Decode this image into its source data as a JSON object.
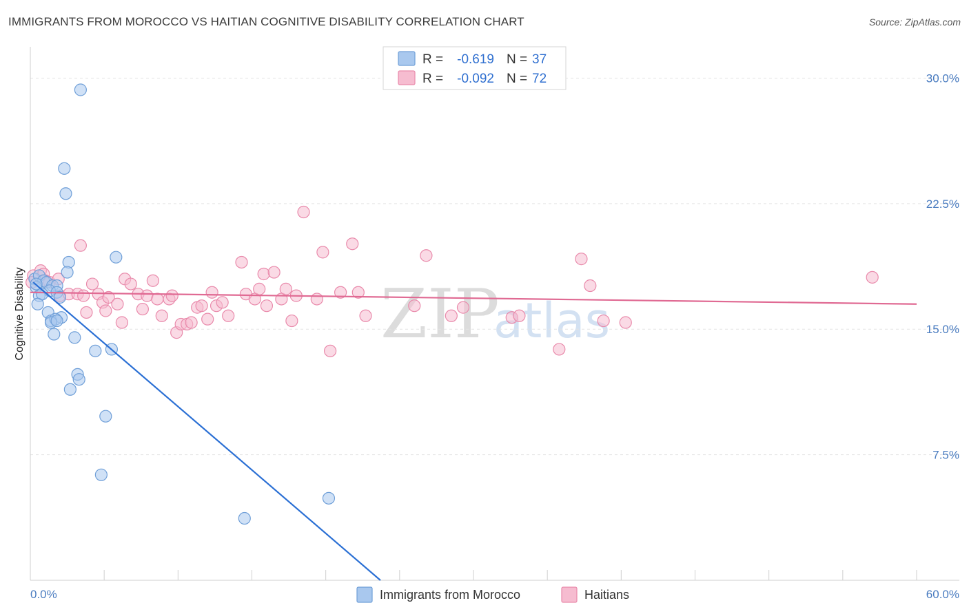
{
  "title": "IMMIGRANTS FROM MOROCCO VS HAITIAN COGNITIVE DISABILITY CORRELATION CHART",
  "source": "Source: ZipAtlas.com",
  "watermark": {
    "zip": "ZIP",
    "atlas": "atlas"
  },
  "legend": {
    "rows": [
      {
        "r_label": "R =",
        "r_value": "-0.619",
        "n_label": "N =",
        "n_value": "37"
      },
      {
        "r_label": "R =",
        "r_value": "-0.092",
        "n_label": "N =",
        "n_value": "72"
      }
    ]
  },
  "bottom_legend": [
    "Immigrants from Morocco",
    "Haitians"
  ],
  "colors": {
    "blue_fill": "#a9c8ee",
    "blue_stroke": "#6f9fd8",
    "blue_line": "#2a6fd4",
    "pink_fill": "#f6bcd0",
    "pink_stroke": "#e98aab",
    "pink_line": "#e06a93",
    "grid": "#e3e3e3",
    "tick_label": "#4a7cc0"
  },
  "chart_data": {
    "type": "scatter",
    "title": "IMMIGRANTS FROM MOROCCO VS HAITIAN COGNITIVE DISABILITY CORRELATION CHART",
    "xlabel": "",
    "ylabel": "Cognitive Disability",
    "xlim": [
      0,
      60
    ],
    "ylim": [
      0,
      31.5
    ],
    "x_tick_labels": [
      "0.0%",
      "60.0%"
    ],
    "y_ticks": [
      7.5,
      15.0,
      22.5,
      30.0
    ],
    "y_tick_labels": [
      "7.5%",
      "15.0%",
      "22.5%",
      "30.0%"
    ],
    "grid": true,
    "legend_position": "top-center",
    "series": [
      {
        "name": "Immigrants from Morocco",
        "color": "blue",
        "R": -0.619,
        "N": 37,
        "trend": {
          "x1": 0.2,
          "y1": 17.8,
          "x2": 23.7,
          "y2": 0.0
        },
        "points": [
          [
            3.4,
            29.3
          ],
          [
            2.3,
            24.6
          ],
          [
            2.4,
            23.1
          ],
          [
            5.8,
            19.3
          ],
          [
            2.6,
            19.0
          ],
          [
            2.5,
            18.4
          ],
          [
            0.3,
            18.0
          ],
          [
            0.6,
            18.2
          ],
          [
            0.9,
            17.9
          ],
          [
            1.1,
            17.8
          ],
          [
            1.5,
            17.6
          ],
          [
            1.8,
            17.6
          ],
          [
            0.4,
            17.5
          ],
          [
            1.3,
            17.3
          ],
          [
            1.8,
            17.2
          ],
          [
            0.6,
            17.0
          ],
          [
            0.8,
            17.1
          ],
          [
            2.0,
            16.9
          ],
          [
            0.5,
            16.5
          ],
          [
            1.2,
            16.0
          ],
          [
            2.1,
            15.7
          ],
          [
            1.4,
            15.5
          ],
          [
            1.7,
            15.6
          ],
          [
            1.4,
            15.4
          ],
          [
            1.8,
            15.5
          ],
          [
            1.6,
            14.7
          ],
          [
            3.0,
            14.5
          ],
          [
            4.4,
            13.7
          ],
          [
            5.5,
            13.8
          ],
          [
            3.2,
            12.3
          ],
          [
            3.3,
            12.0
          ],
          [
            2.7,
            11.4
          ],
          [
            5.1,
            9.8
          ],
          [
            4.8,
            6.3
          ],
          [
            20.2,
            4.9
          ],
          [
            14.5,
            3.7
          ],
          [
            0.4,
            17.7
          ]
        ]
      },
      {
        "name": "Haitians",
        "color": "pink",
        "R": -0.092,
        "N": 72,
        "trend": {
          "x1": 0.0,
          "y1": 17.2,
          "x2": 60.0,
          "y2": 16.5
        },
        "points": [
          [
            0.2,
            18.2
          ],
          [
            0.7,
            18.5
          ],
          [
            0.9,
            18.3
          ],
          [
            1.0,
            17.9
          ],
          [
            1.3,
            17.8
          ],
          [
            1.9,
            18.0
          ],
          [
            2.0,
            17.0
          ],
          [
            2.6,
            17.1
          ],
          [
            3.2,
            17.1
          ],
          [
            3.6,
            17.0
          ],
          [
            3.4,
            20.0
          ],
          [
            3.8,
            16.0
          ],
          [
            4.2,
            17.7
          ],
          [
            4.6,
            17.1
          ],
          [
            4.9,
            16.6
          ],
          [
            5.1,
            16.1
          ],
          [
            5.3,
            16.9
          ],
          [
            5.9,
            16.5
          ],
          [
            6.2,
            15.4
          ],
          [
            6.4,
            18.0
          ],
          [
            6.8,
            17.7
          ],
          [
            7.3,
            17.1
          ],
          [
            7.6,
            16.2
          ],
          [
            7.9,
            17.0
          ],
          [
            8.3,
            17.9
          ],
          [
            8.6,
            16.8
          ],
          [
            8.9,
            15.8
          ],
          [
            9.4,
            16.8
          ],
          [
            9.6,
            17.0
          ],
          [
            9.9,
            14.8
          ],
          [
            10.2,
            15.3
          ],
          [
            10.6,
            15.3
          ],
          [
            10.9,
            15.4
          ],
          [
            11.3,
            16.3
          ],
          [
            11.6,
            16.4
          ],
          [
            12.0,
            15.6
          ],
          [
            12.3,
            17.2
          ],
          [
            12.6,
            16.4
          ],
          [
            13.0,
            16.6
          ],
          [
            13.4,
            15.8
          ],
          [
            14.3,
            19.0
          ],
          [
            14.6,
            17.1
          ],
          [
            15.2,
            16.8
          ],
          [
            15.5,
            17.4
          ],
          [
            15.8,
            18.3
          ],
          [
            16.0,
            16.4
          ],
          [
            16.5,
            18.4
          ],
          [
            17.0,
            16.8
          ],
          [
            17.3,
            17.4
          ],
          [
            17.7,
            15.5
          ],
          [
            18.0,
            17.0
          ],
          [
            18.5,
            22.0
          ],
          [
            19.4,
            16.8
          ],
          [
            19.8,
            19.6
          ],
          [
            20.3,
            13.7
          ],
          [
            21.0,
            17.2
          ],
          [
            21.8,
            20.1
          ],
          [
            22.2,
            17.2
          ],
          [
            22.7,
            15.8
          ],
          [
            26.0,
            16.4
          ],
          [
            26.8,
            19.4
          ],
          [
            28.5,
            15.8
          ],
          [
            29.3,
            16.3
          ],
          [
            32.6,
            15.7
          ],
          [
            33.1,
            15.8
          ],
          [
            35.8,
            13.8
          ],
          [
            37.3,
            19.2
          ],
          [
            37.9,
            17.6
          ],
          [
            38.8,
            15.5
          ],
          [
            40.3,
            15.4
          ],
          [
            57.0,
            18.1
          ],
          [
            0.1,
            17.8
          ]
        ]
      }
    ]
  }
}
